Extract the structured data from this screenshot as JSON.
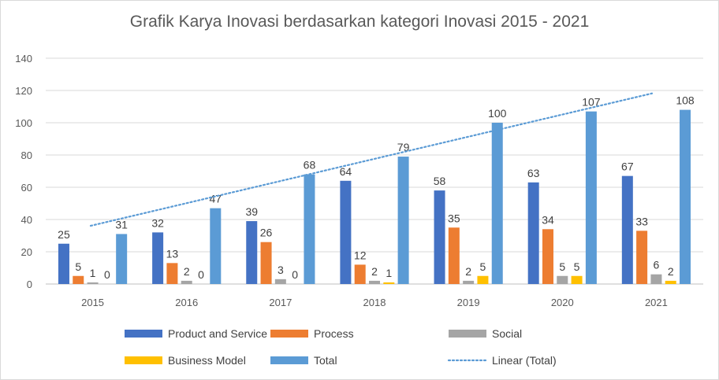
{
  "chart_data": {
    "type": "bar",
    "title": "Grafik Karya Inovasi berdasarkan kategori Inovasi 2015 - 2021",
    "categories": [
      "2015",
      "2016",
      "2017",
      "2018",
      "2019",
      "2020",
      "2021"
    ],
    "series": [
      {
        "name": "Product and Service",
        "color": "#4472c4",
        "values": [
          25,
          32,
          39,
          64,
          58,
          63,
          67
        ]
      },
      {
        "name": "Process",
        "color": "#ed7d31",
        "values": [
          5,
          13,
          26,
          12,
          35,
          34,
          33
        ]
      },
      {
        "name": "Social",
        "color": "#a5a5a5",
        "values": [
          1,
          2,
          3,
          2,
          2,
          5,
          6
        ]
      },
      {
        "name": "Business Model",
        "color": "#ffc000",
        "values": [
          0,
          0,
          0,
          1,
          5,
          5,
          2
        ]
      },
      {
        "name": "Total",
        "color": "#5b9bd5",
        "values": [
          31,
          47,
          68,
          79,
          100,
          107,
          108
        ]
      }
    ],
    "trendline": {
      "name": "Linear (Total)",
      "color": "#5b9bd5",
      "style": "dotted",
      "of_series": "Total"
    },
    "ylim": [
      0,
      140
    ],
    "yticks": [
      0,
      20,
      40,
      60,
      80,
      100,
      120,
      140
    ],
    "grid": true,
    "legend_position": "bottom"
  }
}
